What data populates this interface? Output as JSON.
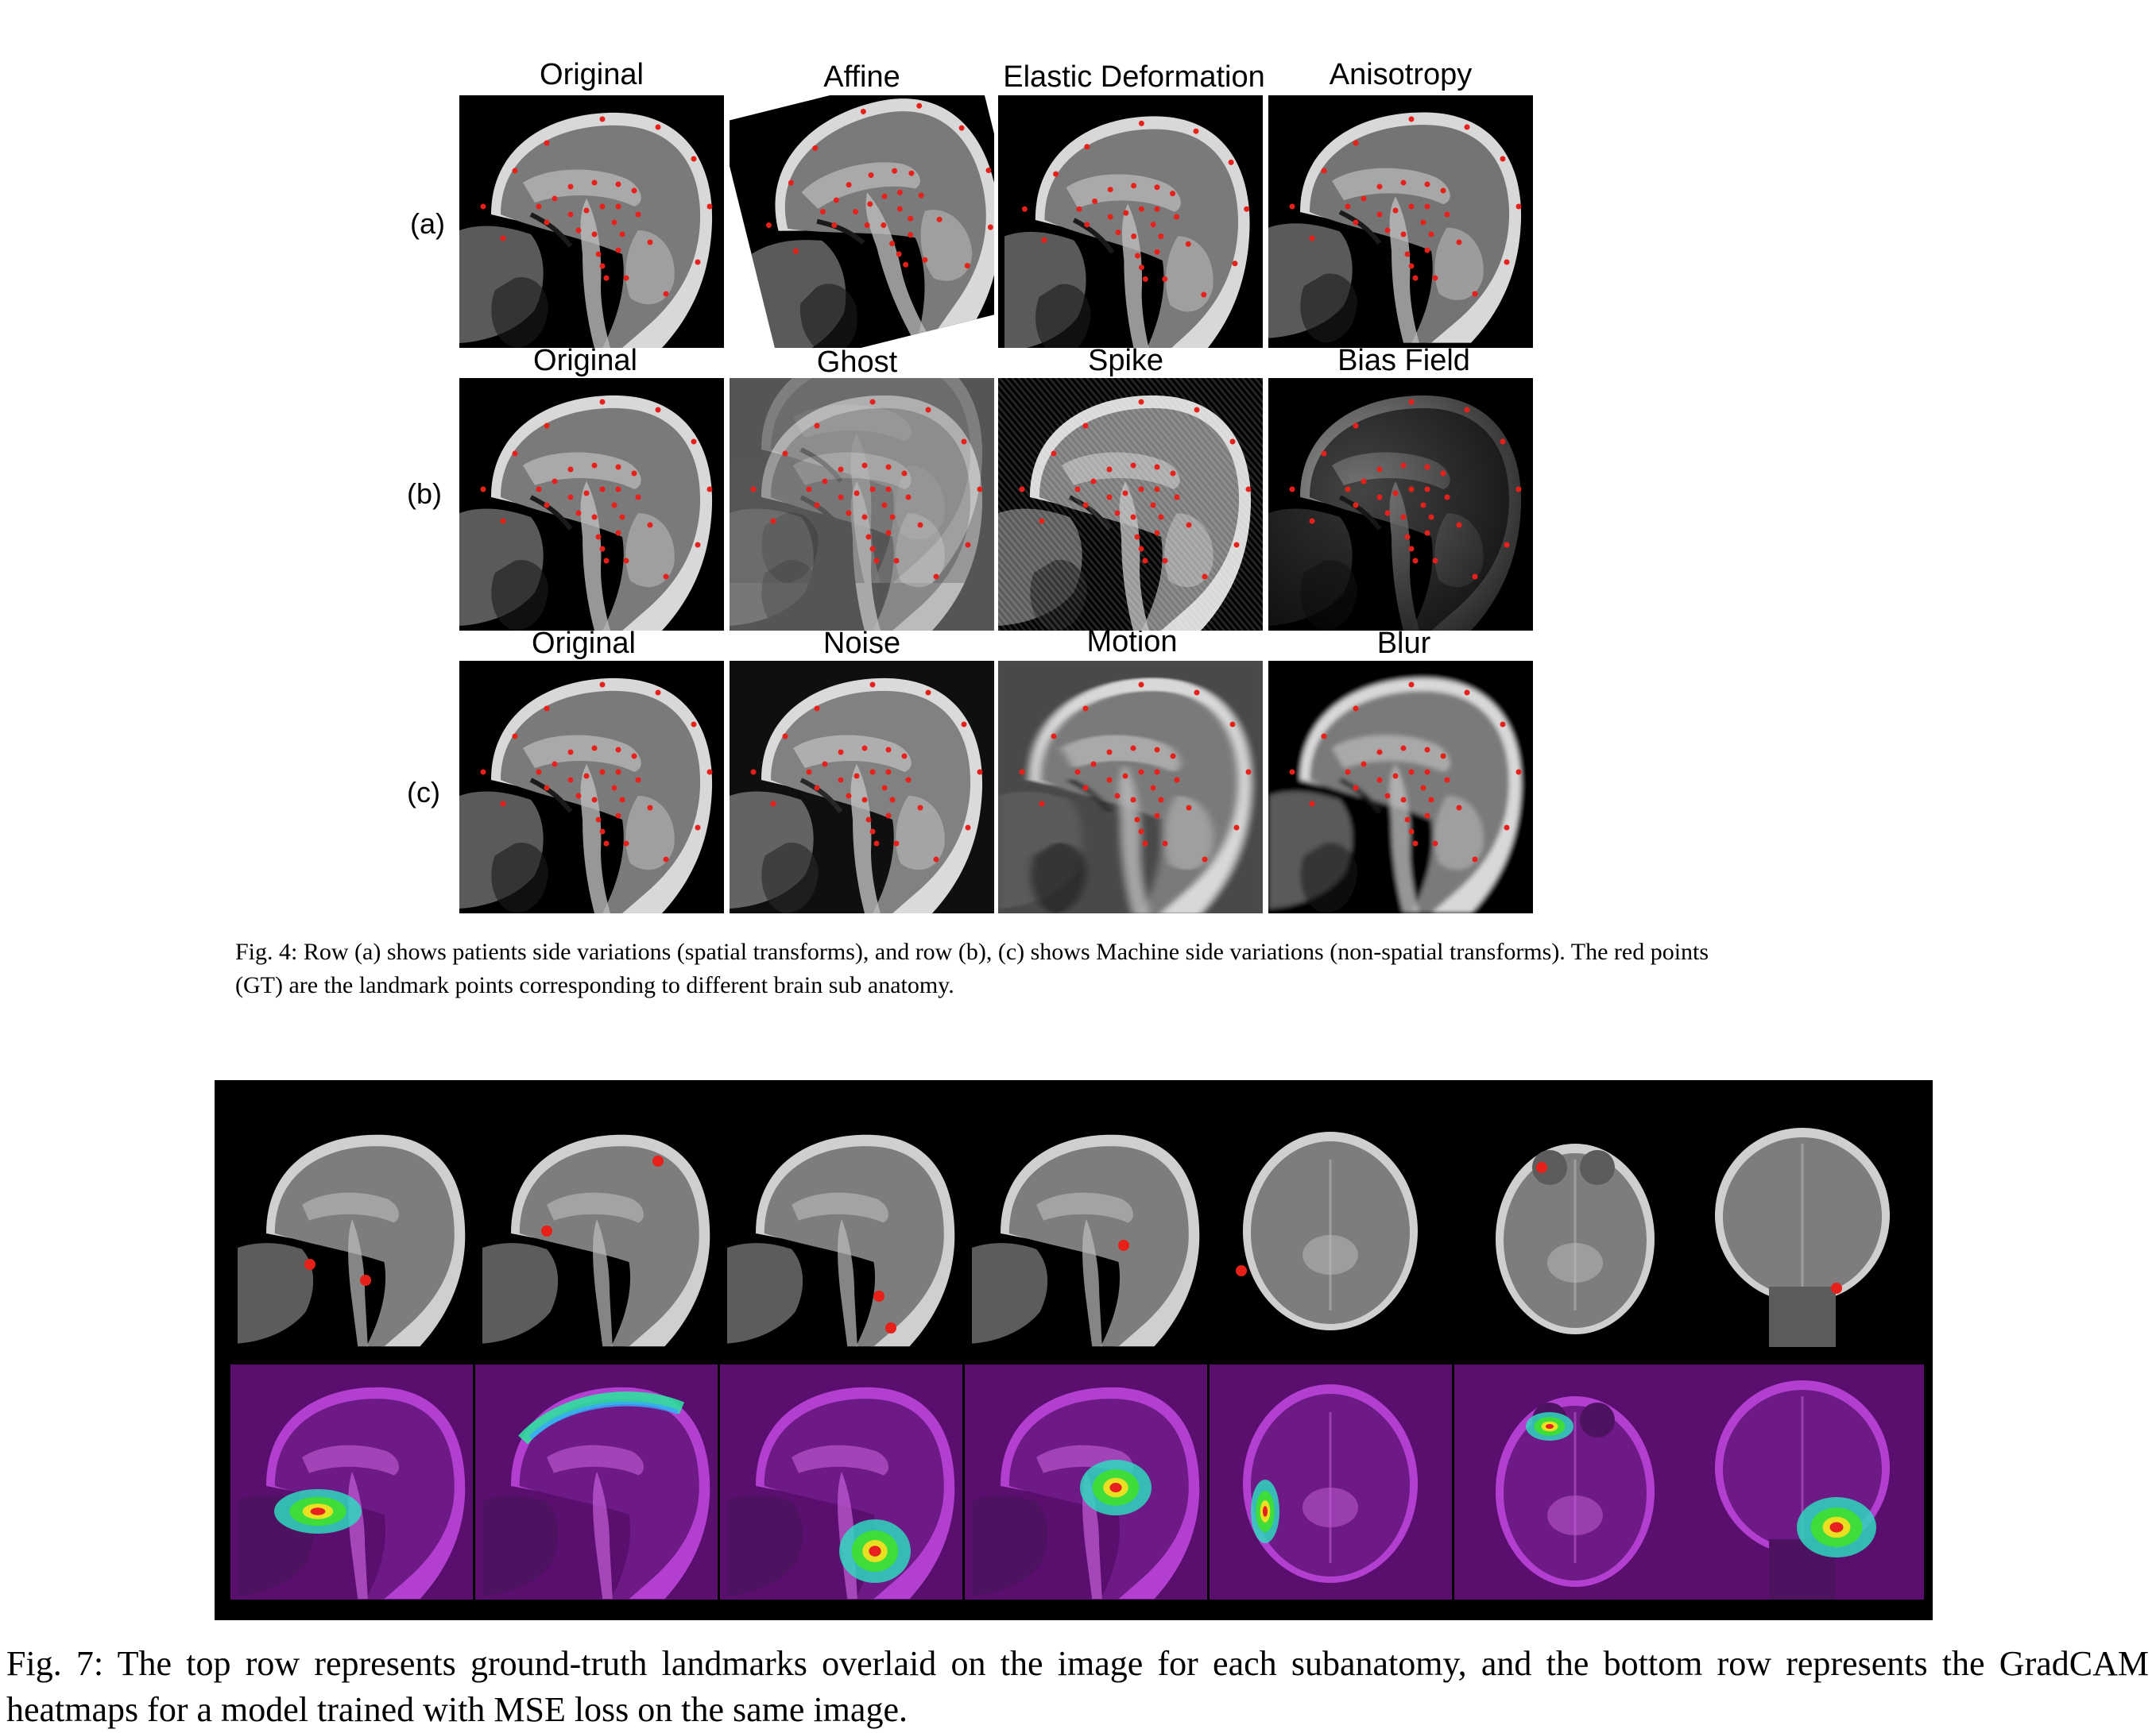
{
  "figure4": {
    "rows": [
      {
        "label": "(a)",
        "titles": [
          "Original",
          "Affine",
          "Elastic Deformation",
          "Anisotropy"
        ],
        "variants": [
          "plain",
          "affine",
          "elastic",
          "aniso"
        ]
      },
      {
        "label": "(b)",
        "titles": [
          "Original",
          "Ghost",
          "Spike",
          "Bias Field"
        ],
        "variants": [
          "plain",
          "ghost",
          "spike",
          "bias"
        ]
      },
      {
        "label": "(c)",
        "titles": [
          "Original",
          "Noise",
          "Motion",
          "Blur"
        ],
        "variants": [
          "plain",
          "noise",
          "motion",
          "blur"
        ]
      }
    ],
    "caption": "Fig. 4: Row (a) shows patients side variations (spatial transforms), and row (b), (c) shows Machine side variations (non-spatial transforms). The red points (GT) are the landmark points corresponding to different brain sub anatomy."
  },
  "figure7": {
    "panels": [
      {
        "view": "sagittal",
        "heat": "frontal-base"
      },
      {
        "view": "sagittal",
        "heat": "vertex-arc"
      },
      {
        "view": "sagittal",
        "heat": "brainstem"
      },
      {
        "view": "sagittal",
        "heat": "centrum"
      },
      {
        "view": "axial",
        "heat": "lateral-left"
      },
      {
        "view": "axial-low",
        "heat": "orbit"
      },
      {
        "view": "coronal",
        "heat": "temporal"
      }
    ],
    "caption": "Fig. 7: The top row represents ground-truth landmarks overlaid on the image for each subanatomy, and the bottom row represents the GradCAM heatmaps for a model trained with MSE loss on the same image."
  },
  "colors": {
    "landmark": "#e8201a",
    "heatmap_base": "#5a0f6e"
  }
}
